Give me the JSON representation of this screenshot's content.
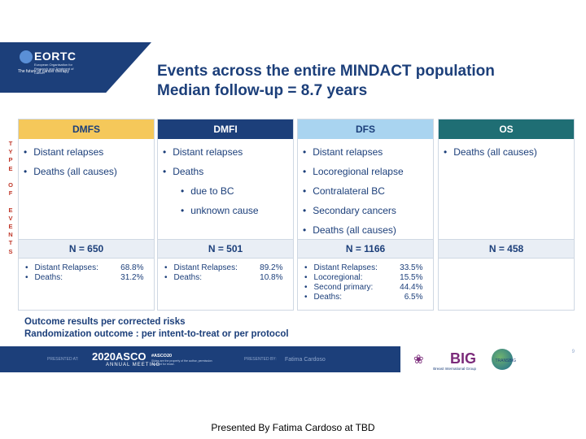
{
  "header": {
    "logo": "EORTC",
    "logo_sub": "European Organisation for Research and Treatment of Cancer",
    "tagline": "The future of cancer therapy",
    "title_line1": "Events across the entire MINDACT population",
    "title_line2": "Median follow-up = 8.7  years"
  },
  "side_label": [
    "T",
    "Y",
    "P",
    "E",
    "",
    "O",
    "F",
    "",
    "E",
    "V",
    "E",
    "N",
    "T",
    "S"
  ],
  "columns": [
    {
      "heading": "DMFS",
      "head_bg": "#f5c85a",
      "head_color": "#1c3f7a",
      "bullets": [
        {
          "text": "Distant relapses",
          "sub": false
        },
        {
          "text": "Deaths (all causes)",
          "sub": false
        }
      ],
      "n": "N = 650",
      "summary": [
        {
          "k": "Distant Relapses:",
          "v": "68.8%"
        },
        {
          "k": "Deaths:",
          "v": "31.2%"
        }
      ]
    },
    {
      "heading": "DMFI",
      "head_bg": "#1c3f7a",
      "head_color": "#ffffff",
      "bullets": [
        {
          "text": "Distant relapses",
          "sub": false
        },
        {
          "text": "Deaths",
          "sub": false
        },
        {
          "text": "due to BC",
          "sub": true
        },
        {
          "text": "unknown cause",
          "sub": true
        }
      ],
      "n": "N = 501",
      "summary": [
        {
          "k": "Distant Relapses:",
          "v": "89.2%"
        },
        {
          "k": "Deaths:",
          "v": "10.8%"
        }
      ]
    },
    {
      "heading": "DFS",
      "head_bg": "#a9d4f0",
      "head_color": "#1c3f7a",
      "bullets": [
        {
          "text": "Distant relapses",
          "sub": false
        },
        {
          "text": "Locoregional relapse",
          "sub": false
        },
        {
          "text": "Contralateral BC",
          "sub": false
        },
        {
          "text": "Secondary cancers",
          "sub": false
        },
        {
          "text": "Deaths (all causes)",
          "sub": false
        }
      ],
      "n": "N = 1166",
      "summary": [
        {
          "k": "Distant Relapses:",
          "v": "33.5%"
        },
        {
          "k": "Locoregional:",
          "v": "15.5%"
        },
        {
          "k": "Second primary:",
          "v": "44.4%"
        },
        {
          "k": "Deaths:",
          "v": "6.5%"
        }
      ]
    },
    {
      "heading": "OS",
      "head_bg": "#1f6e74",
      "head_color": "#ffffff",
      "bullets": [
        {
          "text": "Deaths (all causes)",
          "sub": false
        }
      ],
      "n": "N = 458",
      "summary": []
    }
  ],
  "notes": {
    "line1": "Outcome results per corrected risks",
    "line2": "Randomization outcome : per intent-to-treat or per protocol"
  },
  "footer": {
    "presented_at": "PRESENTED AT:",
    "asco": "2020ASCO",
    "annual": "ANNUAL MEETING",
    "hashtag": "#ASCO20",
    "hashtag_sub": "Slides are the property of the author, permission required for reuse.",
    "presented_by": "PRESENTED BY:",
    "presenter": "Fatima Cardoso",
    "page": "9",
    "big": "BIG",
    "big_sub": "Breast International Group",
    "globe_text": "TRANSBIG"
  },
  "caption": "Presented By Fatima Cardoso at TBD"
}
